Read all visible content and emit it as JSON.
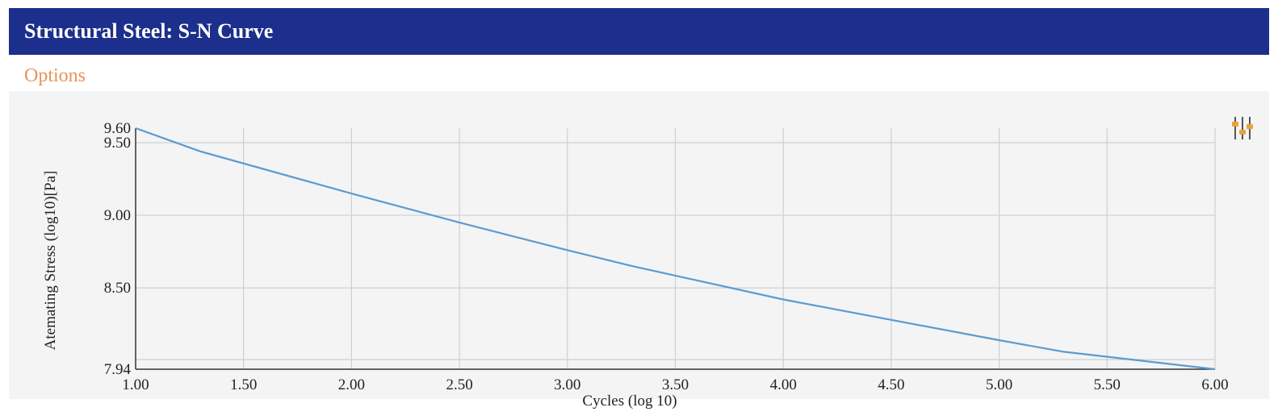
{
  "header": {
    "title": "Structural Steel: S-N Curve"
  },
  "options": {
    "label": "Options"
  },
  "toolbar": {
    "settings_icon": "sliders-icon",
    "icon_color": "#e8a33a"
  },
  "colors": {
    "header_bg": "#1c2f8c",
    "options_text": "#e8935a",
    "line": "#5b9bd0"
  },
  "chart_data": {
    "type": "line",
    "title": "",
    "xlabel": "Cycles (log 10)",
    "ylabel": "Atemating Stress (log10)[Pa]",
    "xlim": [
      1.0,
      6.0
    ],
    "ylim": [
      7.94,
      9.6
    ],
    "x_ticks": [
      "1.00",
      "1.50",
      "2.00",
      "2.50",
      "3.00",
      "3.50",
      "4.00",
      "4.50",
      "5.00",
      "5.50",
      "6.00"
    ],
    "y_ticks": [
      "7.94",
      "8.50",
      "9.00",
      "9.50",
      "9.60"
    ],
    "grid": true,
    "legend": "none",
    "series": [
      {
        "x": [
          1.0,
          1.3,
          2.0,
          2.5,
          3.0,
          3.3,
          4.0,
          4.5,
          5.0,
          5.3,
          6.0
        ],
        "y": [
          9.6,
          9.44,
          9.15,
          8.95,
          8.76,
          8.65,
          8.42,
          8.28,
          8.14,
          8.06,
          7.94
        ]
      }
    ]
  }
}
